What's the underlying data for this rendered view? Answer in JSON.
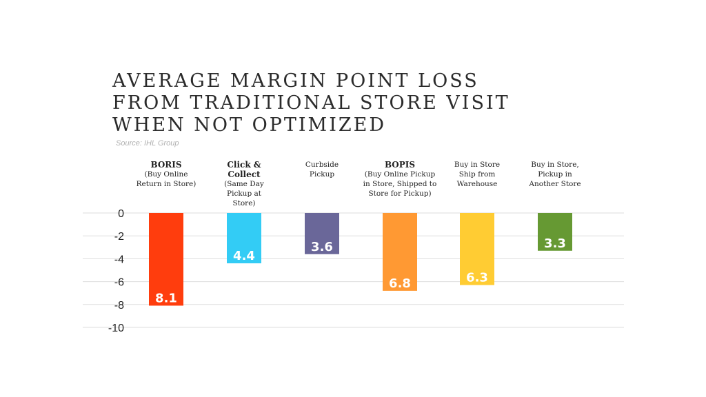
{
  "title_lines": [
    "AVERAGE MARGIN POINT LOSS",
    "FROM TRADITIONAL STORE VISIT",
    "WHEN NOT OPTIMIZED"
  ],
  "source": "Source: IHL Group",
  "categories_display": [
    {
      "head": "BORIS",
      "sub": "(Buy Online\nReturn in Store)"
    },
    {
      "head": "Click &\nCollect",
      "sub": "(Same Day\nPickup at\nStore)"
    },
    {
      "head": "",
      "sub": "Curbside\nPickup"
    },
    {
      "head": "BOPIS",
      "sub": "(Buy Online Pickup\nin Store, Shipped to\nStore for Pickup)"
    },
    {
      "head": "",
      "sub": "Buy in Store\nShip from\nWarehouse"
    },
    {
      "head": "",
      "sub": "Buy in Store,\nPickup in\nAnother Store"
    }
  ],
  "chart_data": {
    "type": "bar",
    "title": "AVERAGE MARGIN POINT LOSS FROM TRADITIONAL STORE VISIT WHEN NOT OPTIMIZED",
    "categories": [
      "BORIS (Buy Online Return in Store)",
      "Click & Collect (Same Day Pickup at Store)",
      "Curbside Pickup",
      "BOPIS (Buy Online Pickup in Store, Shipped to Store for Pickup)",
      "Buy in Store Ship from Warehouse",
      "Buy in Store, Pickup in Another Store"
    ],
    "values": [
      -8.1,
      -4.4,
      -3.6,
      -6.8,
      -6.3,
      -3.3
    ],
    "data_labels": [
      "8.1",
      "4.4",
      "3.6",
      "6.8",
      "6.3",
      "3.3"
    ],
    "colors": [
      "#ff3d0d",
      "#33ccf5",
      "#6a6799",
      "#ff9933",
      "#ffcc33",
      "#669933"
    ],
    "ylim": [
      -10,
      0
    ],
    "yticks": [
      0,
      -2,
      -4,
      -6,
      -8,
      -10
    ],
    "ytick_labels": [
      "0",
      "-2",
      "-4",
      "-6",
      "-8",
      "-10"
    ],
    "grid": true,
    "legend": "none"
  }
}
